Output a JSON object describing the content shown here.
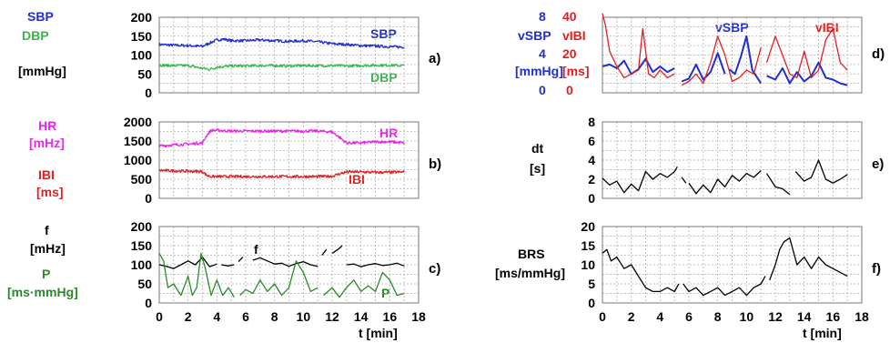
{
  "colors": {
    "blue": "#1f2fd0",
    "green": "#35b84a",
    "magenta": "#ee22ee",
    "red": "#e02020",
    "black": "#000000",
    "darkgreen": "#2a8a2a"
  },
  "x_axis": {
    "label": "t  [min]",
    "ticks": [
      "0",
      "2",
      "4",
      "6",
      "8",
      "10",
      "12",
      "14",
      "16",
      "18"
    ]
  },
  "chart_data": [
    {
      "panel": "a)",
      "type": "line",
      "labels_left": [
        "SBP",
        "DBP",
        "[mmHg]"
      ],
      "xlim": [
        0,
        18
      ],
      "ylim": [
        0,
        200
      ],
      "yticks": [
        "0",
        "50",
        "100",
        "150",
        "200"
      ],
      "series": [
        {
          "name": "SBP",
          "color": "#1f2fd0",
          "x": [
            0,
            1,
            2,
            3,
            3.5,
            4,
            4.5,
            5,
            6,
            7,
            8,
            9,
            10,
            11,
            12,
            13,
            14,
            15,
            16,
            17
          ],
          "y": [
            128,
            126,
            125,
            123,
            132,
            140,
            142,
            138,
            138,
            140,
            138,
            136,
            138,
            135,
            130,
            128,
            125,
            124,
            122,
            121
          ]
        },
        {
          "name": "DBP",
          "color": "#35b84a",
          "x": [
            0,
            1,
            2,
            3,
            3.5,
            4,
            5,
            6,
            7,
            8,
            9,
            10,
            11,
            12,
            13,
            14,
            15,
            16,
            17
          ],
          "y": [
            73,
            72,
            72,
            65,
            62,
            68,
            71,
            71,
            72,
            72,
            71,
            72,
            72,
            72,
            71,
            72,
            73,
            73,
            72
          ]
        }
      ]
    },
    {
      "panel": "b)",
      "type": "line",
      "labels_left": [
        "HR",
        "[mHz]",
        "IBI",
        "[ms]"
      ],
      "xlim": [
        0,
        18
      ],
      "ylim": [
        0,
        2000
      ],
      "yticks": [
        "0",
        "500",
        "1000",
        "1500",
        "2000"
      ],
      "series": [
        {
          "name": "HR",
          "color": "#ee22ee",
          "x": [
            0,
            1,
            2,
            3,
            3.3,
            3.6,
            4,
            5,
            6,
            7,
            8,
            9,
            10,
            11,
            12,
            12.5,
            13,
            14,
            15,
            16,
            17
          ],
          "y": [
            1370,
            1400,
            1420,
            1450,
            1650,
            1780,
            1780,
            1760,
            1760,
            1760,
            1760,
            1760,
            1760,
            1760,
            1740,
            1600,
            1450,
            1450,
            1480,
            1480,
            1450
          ]
        },
        {
          "name": "IBI",
          "color": "#e02020",
          "x": [
            0,
            1,
            2,
            3,
            3.3,
            3.6,
            4,
            5,
            6,
            7,
            8,
            9,
            10,
            11,
            12,
            12.5,
            13,
            14,
            15,
            16,
            17
          ],
          "y": [
            730,
            720,
            710,
            700,
            600,
            570,
            570,
            570,
            570,
            570,
            570,
            570,
            570,
            570,
            580,
            640,
            690,
            690,
            680,
            680,
            690
          ]
        }
      ]
    },
    {
      "panel": "c)",
      "type": "line",
      "labels_left": [
        "f",
        "[mHz]",
        "P",
        "[ms·mmHg]"
      ],
      "xlim": [
        0,
        18
      ],
      "ylim": [
        0,
        200
      ],
      "yticks": [
        "0",
        "50",
        "100",
        "150",
        "200"
      ],
      "series": [
        {
          "name": "f",
          "color": "#000000",
          "segments": [
            {
              "x": [
                0,
                0.5,
                1,
                1.5,
                2,
                2.5,
                3,
                3.5,
                4
              ],
              "y": [
                100,
                96,
                90,
                100,
                110,
                100,
                120,
                95,
                102
              ]
            },
            {
              "x": [
                4.3,
                4.8,
                5.2
              ],
              "y": [
                100,
                97,
                100
              ]
            },
            {
              "x": [
                5.5,
                5.8
              ],
              "y": [
                108,
                120
              ]
            },
            {
              "x": [
                6.5,
                7,
                7.5,
                8,
                8.5,
                9,
                9.5,
                10,
                10.5,
                11
              ],
              "y": [
                112,
                118,
                110,
                102,
                104,
                96,
                103,
                108,
                100,
                96
              ]
            },
            {
              "x": [
                11.3,
                11.6
              ],
              "y": [
                125,
                140
              ]
            },
            {
              "x": [
                12,
                12.4,
                12.7
              ],
              "y": [
                130,
                140,
                150
              ]
            },
            {
              "x": [
                13,
                13.5,
                14,
                14.5,
                15,
                15.5,
                16,
                16.5,
                17
              ],
              "y": [
                100,
                102,
                95,
                100,
                103,
                98,
                100,
                104,
                97
              ]
            }
          ]
        },
        {
          "name": "P",
          "color": "#2a8a2a",
          "segments": [
            {
              "x": [
                0,
                0.3,
                0.6,
                1,
                1.5,
                2,
                2.3,
                2.6,
                2.9,
                3.2,
                3.6,
                4,
                4.4,
                4.8,
                5.2
              ],
              "y": [
                130,
                110,
                40,
                50,
                20,
                70,
                20,
                40,
                130,
                90,
                20,
                60,
                20,
                40,
                15
              ]
            },
            {
              "x": [
                5.6,
                6,
                6.5,
                7,
                7.5,
                8,
                8.5,
                9,
                9.5,
                10,
                10.5,
                11
              ],
              "y": [
                20,
                35,
                25,
                60,
                30,
                50,
                20,
                40,
                110,
                80,
                30,
                40
              ]
            },
            {
              "x": [
                11.4,
                12,
                12.5,
                13,
                13.5,
                14,
                14.5,
                15,
                15.5,
                16,
                16.5,
                17
              ],
              "y": [
                20,
                40,
                15,
                40,
                60,
                30,
                45,
                30,
                80,
                60,
                20,
                25
              ]
            }
          ]
        }
      ]
    },
    {
      "panel": "d)",
      "type": "line",
      "labels_left": [
        "8",
        "vSBP",
        "4",
        "[mmHg]",
        "0"
      ],
      "labels_right": [
        "40",
        "vIBI",
        "20",
        "[ms]",
        "0"
      ],
      "xlim": [
        0,
        18
      ],
      "ylim_left": [
        0,
        8
      ],
      "ylim_right": [
        0,
        40
      ],
      "series": [
        {
          "name": "vSBP",
          "color": "#1f2fd0",
          "axis": "left",
          "segments": [
            {
              "x": [
                0,
                0.5,
                1,
                1.5,
                2,
                2.5,
                3,
                3.5,
                4,
                4.5,
                5
              ],
              "y": [
                2.8,
                3.0,
                2.6,
                3.4,
                2.0,
                2.5,
                3.6,
                2.2,
                2.8,
                2.2,
                2.6
              ]
            },
            {
              "x": [
                5.5,
                6,
                6.5,
                7,
                7.5,
                8,
                8.5
              ],
              "y": [
                1.2,
                1.5,
                3.0,
                1.4,
                2.2,
                4.2,
                2.0
              ]
            },
            {
              "x": [
                8.8,
                9.2,
                9.6,
                10,
                10.4,
                11
              ],
              "y": [
                2.5,
                2.0,
                3.8,
                6.0,
                2.4,
                1.0
              ]
            },
            {
              "x": [
                11.4,
                12,
                12.5,
                13,
                13.5,
                14,
                14.5,
                15,
                15.5,
                16,
                16.5,
                17
              ],
              "y": [
                1.8,
                1.4,
                2.6,
                1.0,
                2.2,
                1.2,
                1.8,
                3.2,
                1.6,
                1.4,
                1.0,
                0.8
              ]
            }
          ]
        },
        {
          "name": "vIBI",
          "color": "#e02020",
          "axis": "right",
          "segments": [
            {
              "x": [
                0,
                0.2,
                0.5,
                1,
                1.5,
                2,
                2.5,
                2.8,
                3.2,
                3.6,
                4,
                4.5,
                5
              ],
              "y": [
                42,
                36,
                22,
                14,
                8,
                10,
                12,
                34,
                10,
                8,
                12,
                8,
                10
              ]
            },
            {
              "x": [
                5.5,
                6,
                6.5,
                7,
                7.5,
                8,
                8.5,
                9,
                9.5,
                10,
                10.5,
                11
              ],
              "y": [
                4,
                6,
                10,
                5,
                16,
                30,
                20,
                6,
                8,
                12,
                10,
                24
              ]
            },
            {
              "x": [
                11.4,
                12,
                12.5,
                13,
                13.5,
                14,
                14.5,
                15,
                15.5,
                16,
                16.5,
                17
              ],
              "y": [
                16,
                30,
                20,
                10,
                8,
                22,
                8,
                12,
                28,
                34,
                16,
                12
              ]
            }
          ]
        }
      ]
    },
    {
      "panel": "e)",
      "type": "line",
      "labels_left": [
        "dt",
        "[s]"
      ],
      "xlim": [
        0,
        18
      ],
      "ylim": [
        0,
        8
      ],
      "yticks": [
        "0",
        "2",
        "4",
        "6",
        "8"
      ],
      "series": [
        {
          "name": "dt",
          "color": "#000000",
          "segments": [
            {
              "x": [
                0,
                0.5,
                1,
                1.5,
                2,
                2.5,
                3,
                3.5,
                4,
                4.5,
                5,
                5.2
              ],
              "y": [
                2.1,
                1.4,
                1.8,
                0.6,
                1.5,
                0.8,
                2.8,
                2.0,
                2.6,
                2.2,
                2.8,
                3.3
              ]
            },
            {
              "x": [
                5.5,
                5.8
              ],
              "y": [
                2.2,
                1.6
              ]
            },
            {
              "x": [
                6,
                6.5,
                7,
                7.5,
                8,
                8.5,
                9,
                9.5,
                10,
                10.5,
                11
              ],
              "y": [
                1.6,
                0.5,
                1.4,
                0.6,
                2.0,
                1.2,
                2.4,
                1.8,
                2.6,
                2.2,
                2.9
              ]
            },
            {
              "x": [
                11.4,
                12,
                12.5,
                13
              ],
              "y": [
                2.6,
                1.2,
                1.0,
                0.4
              ]
            },
            {
              "x": [
                13.4,
                14,
                14.5,
                15,
                15.5,
                16,
                16.5,
                17
              ],
              "y": [
                2.8,
                1.8,
                2.2,
                4.0,
                2.0,
                1.6,
                2.0,
                2.5
              ]
            }
          ]
        }
      ]
    },
    {
      "panel": "f)",
      "type": "line",
      "labels_left": [
        "BRS",
        "[ms/mmHg]"
      ],
      "xlim": [
        0,
        18
      ],
      "ylim": [
        0,
        20
      ],
      "yticks": [
        "0",
        "5",
        "10",
        "15",
        "20"
      ],
      "series": [
        {
          "name": "BRS",
          "color": "#000000",
          "segments": [
            {
              "x": [
                0,
                0.3,
                0.6,
                1,
                1.5,
                2,
                2.5,
                3,
                3.5,
                4,
                4.5,
                5,
                5.3
              ],
              "y": [
                13,
                14,
                11,
                12,
                9,
                10,
                7,
                4,
                3,
                3,
                4,
                3,
                5
              ]
            },
            {
              "x": [
                5.6,
                6,
                6.5,
                7,
                7.5,
                8,
                8.5,
                9,
                9.5,
                10,
                10.5,
                11,
                11.3
              ],
              "y": [
                5,
                3,
                4,
                2,
                3,
                4,
                2,
                3,
                4,
                2,
                4,
                5,
                7
              ]
            },
            {
              "x": [
                11.6,
                12,
                12.3,
                12.6,
                13,
                13.5,
                14,
                14.5,
                15,
                15.5,
                16,
                16.5,
                17
              ],
              "y": [
                6,
                10,
                14,
                16,
                17,
                10,
                12,
                9,
                12,
                10,
                9,
                8,
                7
              ]
            }
          ]
        }
      ]
    }
  ],
  "panel_text": {
    "a": {
      "sbp": "SBP",
      "dbp": "DBP",
      "unit": "[mmHg]",
      "in_sbp": "SBP",
      "in_dbp": "DBP",
      "letter": "a)"
    },
    "b": {
      "hr": "HR",
      "hr_unit": "[mHz]",
      "ibi": "IBI",
      "ibi_unit": "[ms]",
      "in_hr": "HR",
      "in_ibi": "IBI",
      "letter": "b)"
    },
    "c": {
      "f": "f",
      "f_unit": "[mHz]",
      "p": "P",
      "p_unit": "[ms·mmHg]",
      "in_f": "f",
      "in_p": "P",
      "letter": "c)"
    },
    "d": {
      "l8": "8",
      "lv": "vSBP",
      "l4": "4",
      "lunit": "[mmHg]",
      "l0": "0",
      "r40": "40",
      "rv": "vIBI",
      "r20": "20",
      "runit": "[ms]",
      "r0": "0",
      "in_vsbp": "vSBP",
      "in_vibi": "vIBI",
      "letter": "d)"
    },
    "e": {
      "dt": "dt",
      "unit": "[s]",
      "letter": "e)"
    },
    "f": {
      "brs": "BRS",
      "unit": "[ms/mmHg]",
      "letter": "f)"
    }
  }
}
